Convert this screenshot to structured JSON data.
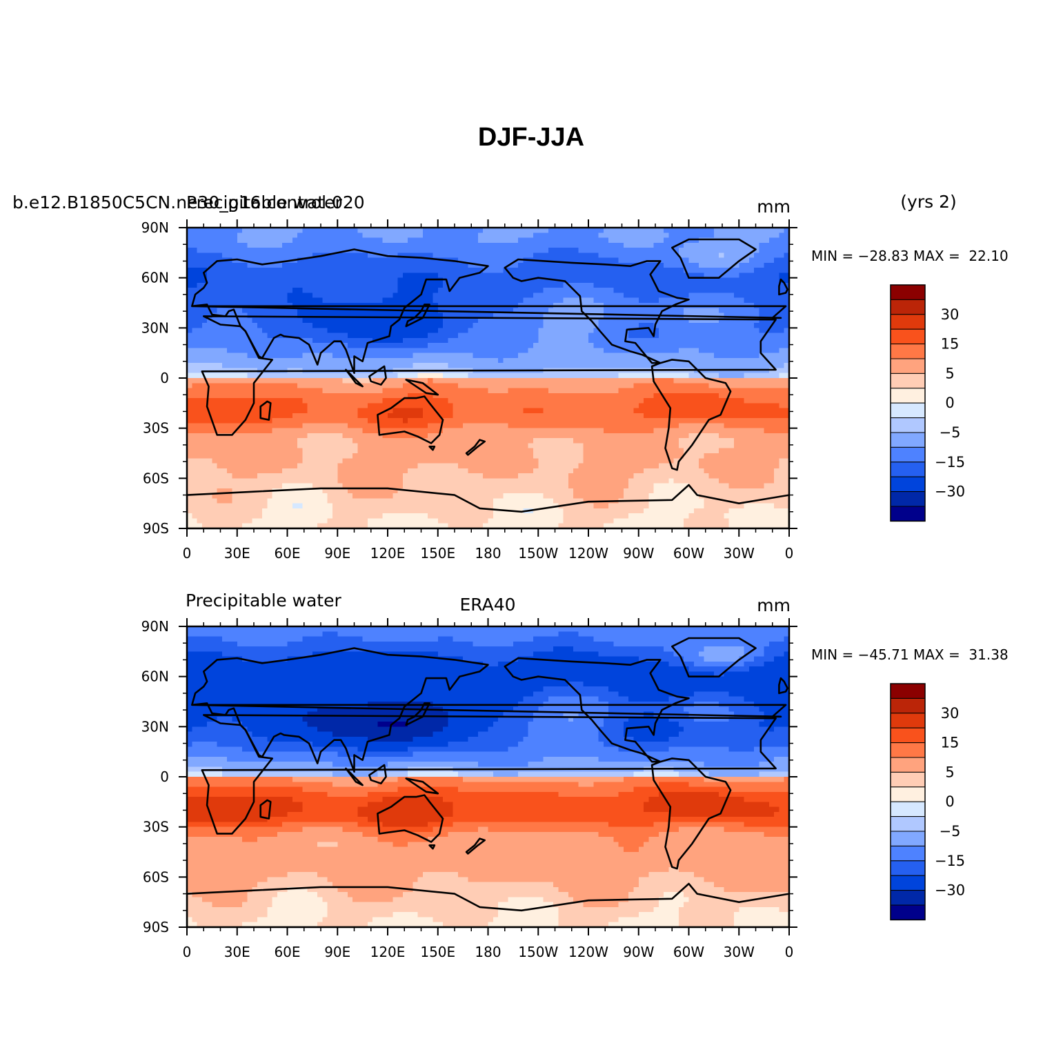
{
  "figure": {
    "title": "DJF-JJA"
  },
  "colorscale": {
    "colors": [
      "#00008b",
      "#0028a8",
      "#0044dc",
      "#2560f0",
      "#4e82ff",
      "#81a8ff",
      "#b0c8ff",
      "#d6e8ff",
      "#fff0e0",
      "#ffcdb5",
      "#ffa37e",
      "#ff7846",
      "#f9521c",
      "#e03a0c",
      "#bb2508",
      "#8b0000"
    ],
    "land_color": "#000000"
  },
  "chart_data": [
    {
      "type": "heatmap",
      "title_left": "b.e12.B1850C5CN.ne30_g16.control.020",
      "title_left_2": "Precipitable water",
      "title_right": "mm",
      "title_note": "(yrs 2)",
      "stats": "MIN = −28.83 MAX =  22.10",
      "min": -28.83,
      "max": 22.1,
      "xlim": [
        0,
        360
      ],
      "ylim": [
        -90,
        90
      ],
      "x_ticks": [
        "0",
        "30E",
        "60E",
        "90E",
        "120E",
        "150E",
        "180",
        "150W",
        "120W",
        "90W",
        "60W",
        "30W",
        "0"
      ],
      "y_ticks": [
        "90N",
        "60N",
        "30N",
        "0",
        "30S",
        "60S",
        "90S"
      ],
      "colorbar_levels": [
        -40,
        -30,
        -20,
        -15,
        -10,
        -5,
        -2,
        0,
        2,
        5,
        10,
        15,
        20,
        30,
        40
      ],
      "colorbar_labels": [
        "30",
        "15",
        "5",
        "0",
        "−5",
        "−15",
        "−30"
      ],
      "pattern": {
        "amp_n": 22,
        "amp_s": 12,
        "monsoon": 8
      }
    },
    {
      "type": "heatmap",
      "title_left": "Precipitable water",
      "title_center": "ERA40",
      "title_right": "mm",
      "stats": "MIN = −45.71 MAX =  31.38",
      "min": -45.71,
      "max": 31.38,
      "xlim": [
        0,
        360
      ],
      "ylim": [
        -90,
        90
      ],
      "x_ticks": [
        "0",
        "30E",
        "60E",
        "90E",
        "120E",
        "150E",
        "180",
        "150W",
        "120W",
        "90W",
        "60W",
        "30W",
        "0"
      ],
      "y_ticks": [
        "90N",
        "60N",
        "30N",
        "0",
        "30S",
        "60S",
        "90S"
      ],
      "colorbar_levels": [
        -40,
        -30,
        -20,
        -15,
        -10,
        -5,
        -2,
        0,
        2,
        5,
        10,
        15,
        20,
        30,
        40
      ],
      "colorbar_labels": [
        "30",
        "15",
        "5",
        "0",
        "−5",
        "−15",
        "−30"
      ],
      "pattern": {
        "amp_n": 30,
        "amp_s": 16,
        "monsoon": 16
      }
    }
  ]
}
